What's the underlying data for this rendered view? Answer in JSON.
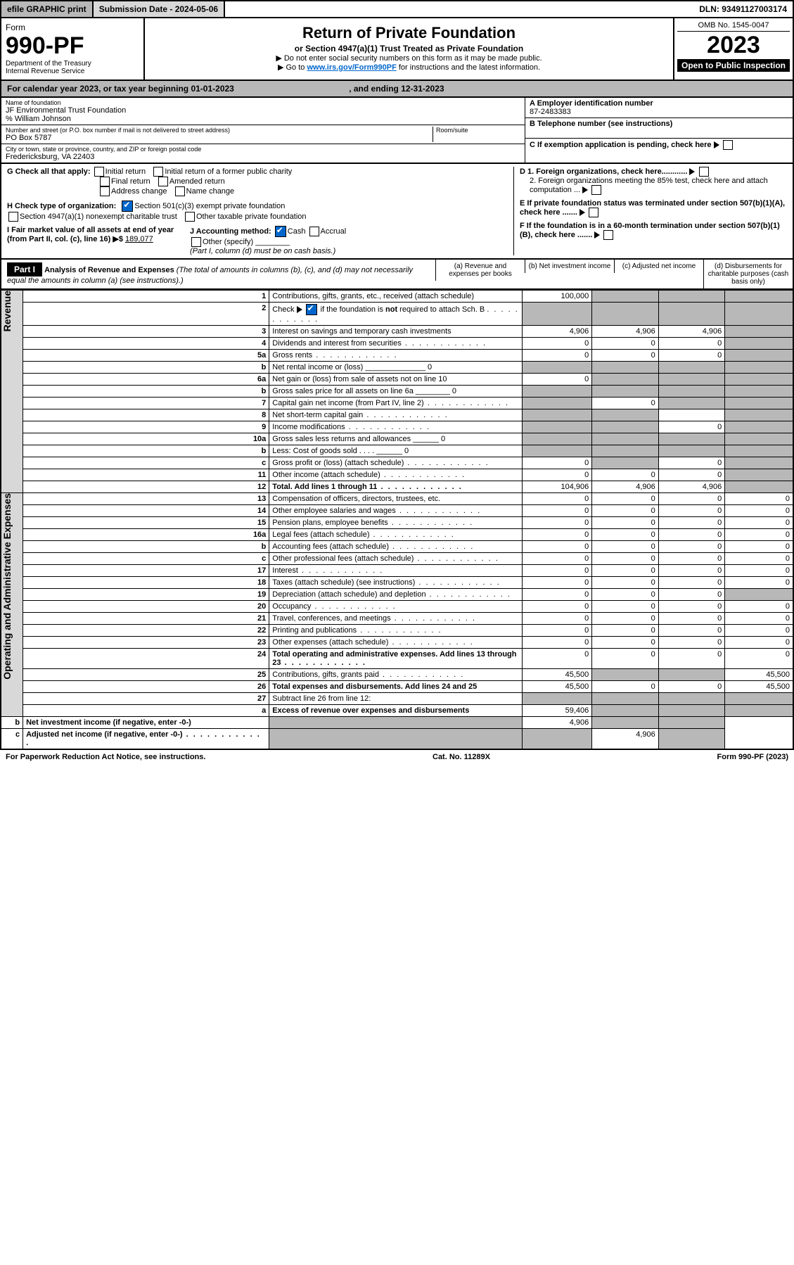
{
  "top": {
    "efile": "efile GRAPHIC print",
    "submission": "Submission Date - 2024-05-06",
    "dln": "DLN: 93491127003174"
  },
  "header": {
    "form_word": "Form",
    "form_no": "990-PF",
    "dept": "Department of the Treasury",
    "irs": "Internal Revenue Service",
    "title": "Return of Private Foundation",
    "subtitle": "or Section 4947(a)(1) Trust Treated as Private Foundation",
    "note1": "▶ Do not enter social security numbers on this form as it may be made public.",
    "note2_pre": "▶ Go to ",
    "note2_link": "www.irs.gov/Form990PF",
    "note2_post": " for instructions and the latest information.",
    "omb": "OMB No. 1545-0047",
    "year": "2023",
    "inspect": "Open to Public Inspection"
  },
  "calyear": {
    "pre": "For calendar year 2023, or tax year beginning ",
    "begin": "01-01-2023",
    "mid": " , and ending ",
    "end": "12-31-2023"
  },
  "entity": {
    "name_lbl": "Name of foundation",
    "name": "JF Environmental Trust Foundation",
    "care": "% William Johnson",
    "addr_lbl": "Number and street (or P.O. box number if mail is not delivered to street address)",
    "addr": "PO Box 5787",
    "room_lbl": "Room/suite",
    "city_lbl": "City or town, state or province, country, and ZIP or foreign postal code",
    "city": "Fredericksburg, VA  22403",
    "a_lbl": "A Employer identification number",
    "ein": "87-2483383",
    "b_lbl": "B Telephone number (see instructions)",
    "c_lbl": "C If exemption application is pending, check here",
    "d1": "D 1. Foreign organizations, check here............",
    "d2": "2. Foreign organizations meeting the 85% test, check here and attach computation ...",
    "e_lbl": "E  If private foundation status was terminated under section 507(b)(1)(A), check here .......",
    "f_lbl": "F  If the foundation is in a 60-month termination under section 507(b)(1)(B), check here ......."
  },
  "checks": {
    "g": "G Check all that apply:",
    "g1": "Initial return",
    "g2": "Initial return of a former public charity",
    "g3": "Final return",
    "g4": "Amended return",
    "g5": "Address change",
    "g6": "Name change",
    "h": "H Check type of organization:",
    "h1": "Section 501(c)(3) exempt private foundation",
    "h2": "Section 4947(a)(1) nonexempt charitable trust",
    "h3": "Other taxable private foundation",
    "i": "I Fair market value of all assets at end of year (from Part II, col. (c), line 16) ▶$",
    "i_val": "189,077",
    "j": "J Accounting method:",
    "j1": "Cash",
    "j2": "Accrual",
    "j3": "Other (specify)",
    "j_note": "(Part I, column (d) must be on cash basis.)"
  },
  "part1": {
    "label": "Part I",
    "title": "Analysis of Revenue and Expenses",
    "title_note": "(The total of amounts in columns (b), (c), and (d) may not necessarily equal the amounts in column (a) (see instructions).)",
    "col_a": "(a)   Revenue and expenses per books",
    "col_b": "(b)   Net investment income",
    "col_c": "(c)   Adjusted net income",
    "col_d": "(d)   Disbursements for charitable purposes (cash basis only)"
  },
  "vert": {
    "rev": "Revenue",
    "exp": "Operating and Administrative Expenses"
  },
  "rows": [
    {
      "n": "1",
      "d": "Contributions, gifts, grants, etc., received (attach schedule)",
      "a": "100,000",
      "bg": [
        "",
        "g",
        "g",
        "g"
      ]
    },
    {
      "n": "2",
      "d": "Check ▶ ☑ if the foundation is not required to attach Sch. B",
      "bg": [
        "g",
        "g",
        "g",
        "g"
      ],
      "dots": 1
    },
    {
      "n": "3",
      "d": "Interest on savings and temporary cash investments",
      "a": "4,906",
      "b": "4,906",
      "c": "4,906",
      "bg": [
        "",
        "",
        "",
        "g"
      ]
    },
    {
      "n": "4",
      "d": "Dividends and interest from securities",
      "a": "0",
      "b": "0",
      "c": "0",
      "bg": [
        "",
        "",
        "",
        "g"
      ],
      "dots": 1
    },
    {
      "n": "5a",
      "d": "Gross rents",
      "a": "0",
      "b": "0",
      "c": "0",
      "bg": [
        "",
        "",
        "",
        "g"
      ],
      "dots": 1
    },
    {
      "n": "b",
      "d": "Net rental income or (loss) ______________ 0",
      "bg": [
        "g",
        "g",
        "g",
        "g"
      ]
    },
    {
      "n": "6a",
      "d": "Net gain or (loss) from sale of assets not on line 10",
      "a": "0",
      "bg": [
        "",
        "g",
        "g",
        "g"
      ]
    },
    {
      "n": "b",
      "d": "Gross sales price for all assets on line 6a ________ 0",
      "bg": [
        "g",
        "g",
        "g",
        "g"
      ]
    },
    {
      "n": "7",
      "d": "Capital gain net income (from Part IV, line 2)",
      "b": "0",
      "bg": [
        "g",
        "",
        "g",
        "g"
      ],
      "dots": 1
    },
    {
      "n": "8",
      "d": "Net short-term capital gain",
      "bg": [
        "g",
        "g",
        "",
        "g"
      ],
      "dots": 1
    },
    {
      "n": "9",
      "d": "Income modifications",
      "c": "0",
      "bg": [
        "g",
        "g",
        "",
        "g"
      ],
      "dots": 1
    },
    {
      "n": "10a",
      "d": "Gross sales less returns and allowances ______ 0",
      "bg": [
        "g",
        "g",
        "g",
        "g"
      ]
    },
    {
      "n": "b",
      "d": "Less: Cost of goods sold  . . . . ______ 0",
      "bg": [
        "g",
        "g",
        "g",
        "g"
      ]
    },
    {
      "n": "c",
      "d": "Gross profit or (loss) (attach schedule)",
      "a": "0",
      "c": "0",
      "bg": [
        "",
        "g",
        "",
        "g"
      ],
      "dots": 1
    },
    {
      "n": "11",
      "d": "Other income (attach schedule)",
      "a": "0",
      "b": "0",
      "c": "0",
      "bg": [
        "",
        "",
        "",
        "g"
      ],
      "dots": 1
    },
    {
      "n": "12",
      "d": "Total. Add lines 1 through 11",
      "a": "104,906",
      "b": "4,906",
      "c": "4,906",
      "bold": 1,
      "bg": [
        "",
        "",
        "",
        "g"
      ],
      "dots": 1
    },
    {
      "n": "13",
      "d": "Compensation of officers, directors, trustees, etc.",
      "a": "0",
      "b": "0",
      "c": "0",
      "dd": "0"
    },
    {
      "n": "14",
      "d": "Other employee salaries and wages",
      "a": "0",
      "b": "0",
      "c": "0",
      "dd": "0",
      "dots": 1
    },
    {
      "n": "15",
      "d": "Pension plans, employee benefits",
      "a": "0",
      "b": "0",
      "c": "0",
      "dd": "0",
      "dots": 1
    },
    {
      "n": "16a",
      "d": "Legal fees (attach schedule)",
      "a": "0",
      "b": "0",
      "c": "0",
      "dd": "0",
      "dots": 1
    },
    {
      "n": "b",
      "d": "Accounting fees (attach schedule)",
      "a": "0",
      "b": "0",
      "c": "0",
      "dd": "0",
      "dots": 1
    },
    {
      "n": "c",
      "d": "Other professional fees (attach schedule)",
      "a": "0",
      "b": "0",
      "c": "0",
      "dd": "0",
      "dots": 1
    },
    {
      "n": "17",
      "d": "Interest",
      "a": "0",
      "b": "0",
      "c": "0",
      "dd": "0",
      "dots": 1
    },
    {
      "n": "18",
      "d": "Taxes (attach schedule) (see instructions)",
      "a": "0",
      "b": "0",
      "c": "0",
      "dd": "0",
      "dots": 1
    },
    {
      "n": "19",
      "d": "Depreciation (attach schedule) and depletion",
      "a": "0",
      "b": "0",
      "c": "0",
      "bg": [
        "",
        "",
        "",
        "g"
      ],
      "dots": 1
    },
    {
      "n": "20",
      "d": "Occupancy",
      "a": "0",
      "b": "0",
      "c": "0",
      "dd": "0",
      "dots": 1
    },
    {
      "n": "21",
      "d": "Travel, conferences, and meetings",
      "a": "0",
      "b": "0",
      "c": "0",
      "dd": "0",
      "dots": 1
    },
    {
      "n": "22",
      "d": "Printing and publications",
      "a": "0",
      "b": "0",
      "c": "0",
      "dd": "0",
      "dots": 1
    },
    {
      "n": "23",
      "d": "Other expenses (attach schedule)",
      "a": "0",
      "b": "0",
      "c": "0",
      "dd": "0",
      "dots": 1
    },
    {
      "n": "24",
      "d": "Total operating and administrative expenses. Add lines 13 through 23",
      "a": "0",
      "b": "0",
      "c": "0",
      "dd": "0",
      "bold": 1,
      "dots": 1
    },
    {
      "n": "25",
      "d": "Contributions, gifts, grants paid",
      "a": "45,500",
      "dd": "45,500",
      "bg": [
        "",
        "g",
        "g",
        ""
      ],
      "dots": 1
    },
    {
      "n": "26",
      "d": "Total expenses and disbursements. Add lines 24 and 25",
      "a": "45,500",
      "b": "0",
      "c": "0",
      "dd": "45,500",
      "bold": 1
    },
    {
      "n": "27",
      "d": "Subtract line 26 from line 12:",
      "bg": [
        "g",
        "g",
        "g",
        "g"
      ]
    },
    {
      "n": "a",
      "d": "Excess of revenue over expenses and disbursements",
      "a": "59,406",
      "bold": 1,
      "bg": [
        "",
        "g",
        "g",
        "g"
      ]
    },
    {
      "n": "b",
      "d": "Net investment income (if negative, enter -0-)",
      "b": "4,906",
      "bold": 1,
      "bg": [
        "g",
        "",
        "g",
        "g"
      ]
    },
    {
      "n": "c",
      "d": "Adjusted net income (if negative, enter -0-)",
      "c": "4,906",
      "bold": 1,
      "bg": [
        "g",
        "g",
        "",
        "g"
      ],
      "dots": 1
    }
  ],
  "footer": {
    "left": "For Paperwork Reduction Act Notice, see instructions.",
    "mid": "Cat. No. 11289X",
    "right": "Form 990-PF (2023)"
  }
}
